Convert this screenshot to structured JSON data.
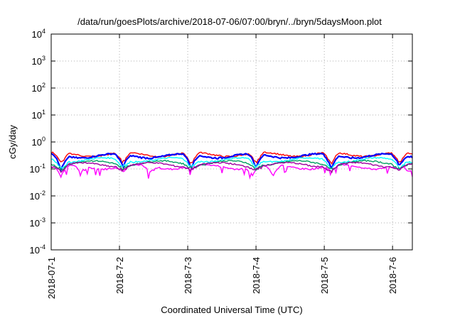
{
  "chart_data": {
    "type": "line",
    "title": "/data/run/goesPlots/archive/2018-07-06/07:00/bryn/../bryn/5daysMoon.plot",
    "xlabel": "Coordinated Universal Time (UTC)",
    "ylabel": "cGy/day",
    "yscale": "log",
    "ylim": [
      0.0001,
      10000
    ],
    "xlim": [
      "2018-07-01",
      "2018-07-06 07:00"
    ],
    "grid": true,
    "x_ticks": [
      "2018-07-1",
      "2018-7-2",
      "2018-7-3",
      "2018-7-4",
      "2018-7-5",
      "2018-7-6"
    ],
    "y_ticks": [
      {
        "base": "10",
        "exp": "-4"
      },
      {
        "base": "10",
        "exp": "-3"
      },
      {
        "base": "10",
        "exp": "-2"
      },
      {
        "base": "10",
        "exp": "-1"
      },
      {
        "base": "10",
        "exp": "0"
      },
      {
        "base": "10",
        "exp": "1"
      },
      {
        "base": "10",
        "exp": "2"
      },
      {
        "base": "10",
        "exp": "3"
      },
      {
        "base": "10",
        "exp": "4"
      }
    ],
    "x_day_positions": [
      0,
      1,
      2,
      3,
      4,
      5
    ],
    "x_end": 5.29,
    "series": [
      {
        "color": "#ff00ff",
        "level": 0.12,
        "dips": [
          [
            0.15,
            0.05
          ],
          [
            0.45,
            0.08
          ],
          [
            1.05,
            0.09
          ],
          [
            1.45,
            0.07
          ],
          [
            2.05,
            0.1
          ],
          [
            2.95,
            0.07
          ],
          [
            3.25,
            0.06
          ],
          [
            4.1,
            0.09
          ],
          [
            5.05,
            0.1
          ],
          [
            5.25,
            0.07
          ]
        ]
      },
      {
        "color": "#ff0000",
        "level": 0.35,
        "dips": [
          [
            0.15,
            0.15
          ],
          [
            1.05,
            0.16
          ],
          [
            2.05,
            0.14
          ],
          [
            3.0,
            0.15
          ],
          [
            4.1,
            0.14
          ],
          [
            5.1,
            0.15
          ]
        ]
      },
      {
        "color": "#0000ff",
        "level": 0.31,
        "dips": [
          [
            0.15,
            0.09
          ],
          [
            1.05,
            0.12
          ],
          [
            2.05,
            0.11
          ],
          [
            3.0,
            0.12
          ],
          [
            4.1,
            0.1
          ],
          [
            5.1,
            0.12
          ]
        ]
      },
      {
        "color": "#00ffff",
        "level": 0.22,
        "dips": [
          [
            0.15,
            0.1
          ],
          [
            1.05,
            0.11
          ],
          [
            2.05,
            0.11
          ],
          [
            3.0,
            0.11
          ],
          [
            4.1,
            0.1
          ],
          [
            5.1,
            0.11
          ]
        ]
      },
      {
        "color": "#00a060",
        "level": 0.17,
        "dips": [
          [
            0.15,
            0.09
          ],
          [
            1.05,
            0.1
          ],
          [
            2.05,
            0.1
          ],
          [
            3.0,
            0.1
          ],
          [
            4.1,
            0.09
          ],
          [
            5.1,
            0.1
          ]
        ]
      },
      {
        "color": "#a000a0",
        "level": 0.145,
        "dips": [
          [
            0.15,
            0.08
          ],
          [
            1.05,
            0.09
          ],
          [
            2.05,
            0.09
          ],
          [
            3.0,
            0.09
          ],
          [
            4.1,
            0.08
          ],
          [
            5.1,
            0.09
          ]
        ]
      }
    ]
  }
}
